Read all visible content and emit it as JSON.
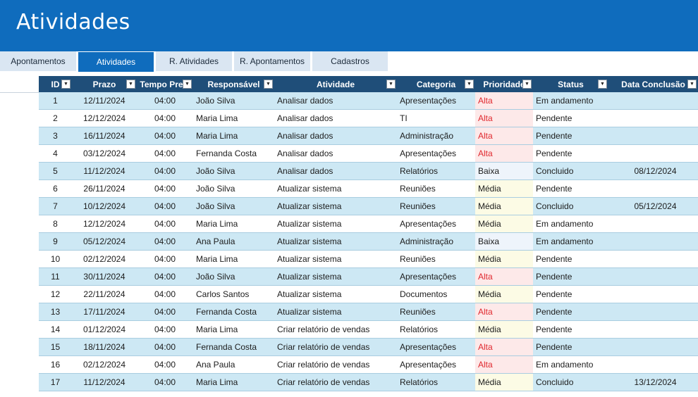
{
  "header": {
    "title": "Atividades"
  },
  "tabs": [
    {
      "label": "Apontamentos",
      "active": false
    },
    {
      "label": "Atividades",
      "active": true
    },
    {
      "label": "R. Atividades",
      "active": false
    },
    {
      "label": "R. Apontamentos",
      "active": false
    },
    {
      "label": "Cadastros",
      "active": false
    }
  ],
  "table": {
    "columns": [
      "ID",
      "Prazo",
      "Tempo Previ",
      "Responsável",
      "Atividade",
      "Categoria",
      "Prioridade",
      "Status",
      "Data Conclusão"
    ],
    "filter_icon": "dropdown-arrow-icon",
    "priority_colors": {
      "Alta": "#e0282e",
      "Média": "#1c1c1c",
      "Baixa": "#1c1c1c"
    },
    "header_color": "#1f4e79",
    "band_color": "#cde8f4",
    "rows": [
      [
        "1",
        "12/11/2024",
        "04:00",
        "João Silva",
        "Analisar dados",
        "Apresentações",
        "Alta",
        "Em andamento",
        ""
      ],
      [
        "2",
        "12/12/2024",
        "04:00",
        "Maria Lima",
        "Analisar dados",
        "TI",
        "Alta",
        "Pendente",
        ""
      ],
      [
        "3",
        "16/11/2024",
        "04:00",
        "Maria Lima",
        "Analisar dados",
        "Administração",
        "Alta",
        "Pendente",
        ""
      ],
      [
        "4",
        "03/12/2024",
        "04:00",
        "Fernanda Costa",
        "Analisar dados",
        "Apresentações",
        "Alta",
        "Pendente",
        ""
      ],
      [
        "5",
        "11/12/2024",
        "04:00",
        "João Silva",
        "Analisar dados",
        "Relatórios",
        "Baixa",
        "Concluido",
        "08/12/2024"
      ],
      [
        "6",
        "26/11/2024",
        "04:00",
        "João Silva",
        "Atualizar sistema",
        "Reuniões",
        "Média",
        "Pendente",
        ""
      ],
      [
        "7",
        "10/12/2024",
        "04:00",
        "João Silva",
        "Atualizar sistema",
        "Reuniões",
        "Média",
        "Concluido",
        "05/12/2024"
      ],
      [
        "8",
        "12/12/2024",
        "04:00",
        "Maria Lima",
        "Atualizar sistema",
        "Apresentações",
        "Média",
        "Em andamento",
        ""
      ],
      [
        "9",
        "05/12/2024",
        "04:00",
        "Ana Paula",
        "Atualizar sistema",
        "Administração",
        "Baixa",
        "Em andamento",
        ""
      ],
      [
        "10",
        "02/12/2024",
        "04:00",
        "Maria Lima",
        "Atualizar sistema",
        "Reuniões",
        "Média",
        "Pendente",
        ""
      ],
      [
        "11",
        "30/11/2024",
        "04:00",
        "João Silva",
        "Atualizar sistema",
        "Apresentações",
        "Alta",
        "Pendente",
        ""
      ],
      [
        "12",
        "22/11/2024",
        "04:00",
        "Carlos Santos",
        "Atualizar sistema",
        "Documentos",
        "Média",
        "Pendente",
        ""
      ],
      [
        "13",
        "17/11/2024",
        "04:00",
        "Fernanda Costa",
        "Atualizar sistema",
        "Reuniões",
        "Alta",
        "Pendente",
        ""
      ],
      [
        "14",
        "01/12/2024",
        "04:00",
        "Maria Lima",
        "Criar relatório de vendas",
        "Relatórios",
        "Média",
        "Pendente",
        ""
      ],
      [
        "15",
        "18/11/2024",
        "04:00",
        "Fernanda Costa",
        "Criar relatório de vendas",
        "Apresentações",
        "Alta",
        "Pendente",
        ""
      ],
      [
        "16",
        "02/12/2024",
        "04:00",
        "Ana Paula",
        "Criar relatório de vendas",
        "Apresentações",
        "Alta",
        "Em andamento",
        ""
      ],
      [
        "17",
        "11/12/2024",
        "04:00",
        "Maria Lima",
        "Criar relatório de vendas",
        "Relatórios",
        "Média",
        "Concluido",
        "13/12/2024"
      ]
    ]
  }
}
